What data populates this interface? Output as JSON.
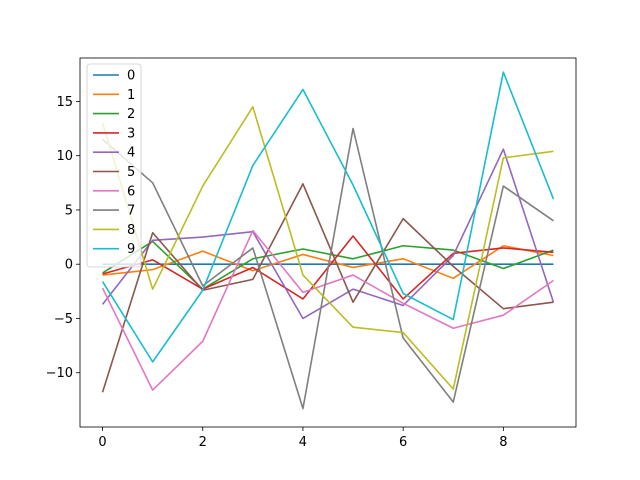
{
  "chart_data": {
    "type": "line",
    "title": "",
    "xlabel": "",
    "ylabel": "",
    "x": [
      0,
      1,
      2,
      3,
      4,
      5,
      6,
      7,
      8,
      9
    ],
    "xlim": [
      -0.45,
      9.45
    ],
    "ylim": [
      -15,
      19
    ],
    "xticks": [
      0,
      2,
      4,
      6,
      8
    ],
    "yticks": [
      -10,
      -5,
      0,
      5,
      10,
      15
    ],
    "grid": false,
    "legend_position": "top-left",
    "series": [
      {
        "name": "0",
        "color": "#1f77b4",
        "values": [
          0,
          0,
          0,
          0,
          0,
          0,
          0,
          0,
          0,
          0
        ]
      },
      {
        "name": "1",
        "color": "#ff7f0e",
        "values": [
          -1.0,
          -0.5,
          1.2,
          -0.6,
          0.9,
          -0.3,
          0.5,
          -1.3,
          1.7,
          0.8
        ]
      },
      {
        "name": "2",
        "color": "#2ca02c",
        "values": [
          -0.8,
          2.1,
          -2.3,
          0.5,
          1.4,
          0.5,
          1.7,
          1.3,
          -0.4,
          1.3
        ]
      },
      {
        "name": "3",
        "color": "#d62728",
        "values": [
          -0.9,
          0.4,
          -2.3,
          -0.3,
          -3.2,
          2.6,
          -3.2,
          1.0,
          1.5,
          1.1
        ]
      },
      {
        "name": "4",
        "color": "#9467bd",
        "values": [
          -3.7,
          2.2,
          2.5,
          3.0,
          -5.0,
          -2.3,
          -3.8,
          0.8,
          10.6,
          -3.5
        ]
      },
      {
        "name": "5",
        "color": "#8c564b",
        "values": [
          -11.8,
          2.9,
          -2.4,
          -1.4,
          7.4,
          -3.5,
          4.2,
          -0.2,
          -4.1,
          -3.5
        ]
      },
      {
        "name": "6",
        "color": "#e377c2",
        "values": [
          -2.2,
          -11.6,
          -7.1,
          3.1,
          -2.6,
          -1.0,
          -3.6,
          -5.9,
          -4.7,
          -1.5
        ]
      },
      {
        "name": "7",
        "color": "#7f7f7f",
        "values": [
          11.5,
          7.5,
          -2.0,
          1.5,
          -13.3,
          12.5,
          -6.8,
          -12.7,
          7.2,
          4.0
        ]
      },
      {
        "name": "8",
        "color": "#bcbd22",
        "values": [
          13.0,
          -2.3,
          7.2,
          14.5,
          -1.0,
          -5.8,
          -6.3,
          -11.5,
          9.8,
          10.4
        ]
      },
      {
        "name": "9",
        "color": "#17becf",
        "values": [
          -1.6,
          -9.0,
          -2.4,
          9.1,
          16.1,
          7.3,
          -2.7,
          -5.1,
          17.7,
          6.0
        ]
      }
    ]
  }
}
